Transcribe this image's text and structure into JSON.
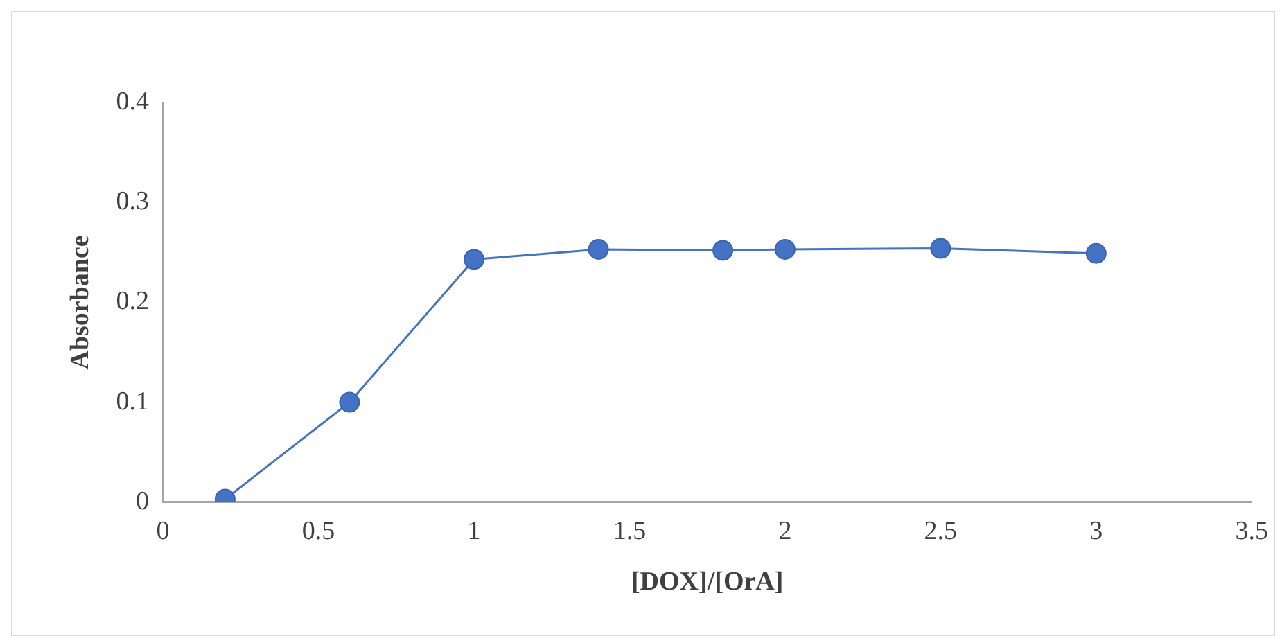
{
  "chart_data": {
    "type": "line",
    "xlabel": "[DOX]/[OrA]",
    "ylabel": "Absorbance",
    "x": [
      0.2,
      0.6,
      1,
      1.4,
      1.8,
      2,
      2.5,
      3
    ],
    "series": [
      {
        "color": "#4472c4",
        "values": [
          0.003,
          0.1,
          0.243,
          0.253,
          0.252,
          0.253,
          0.254,
          0.249
        ]
      }
    ],
    "xlim": [
      0,
      3.5
    ],
    "xticks": [
      0,
      0.5,
      1,
      1.5,
      2,
      2.5,
      3,
      3.5
    ],
    "ylim": [
      0,
      0.4
    ],
    "yticks": [
      0,
      0.1,
      0.2,
      0.3,
      0.4
    ],
    "grid": false,
    "legend": false,
    "marker": "circle",
    "line_style": "solid"
  }
}
